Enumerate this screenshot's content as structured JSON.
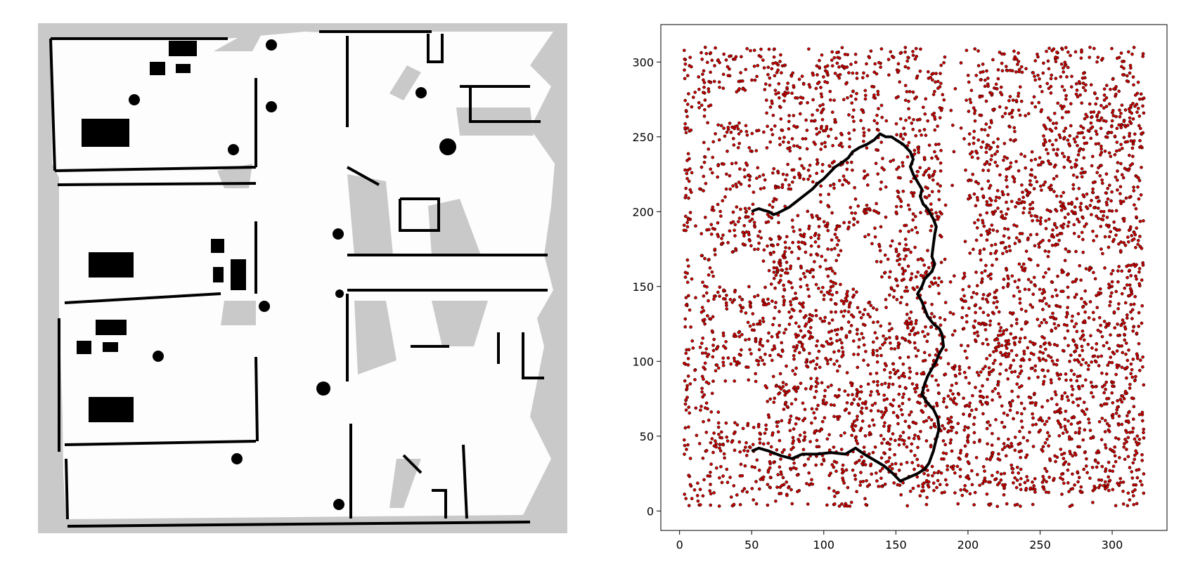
{
  "map": {
    "background_color": "#c9c9c9",
    "free_color": "#fdfdfd",
    "wall_color": "#000000",
    "obstacle_color": "#000000"
  },
  "chart_data": {
    "type": "scatter",
    "title": "",
    "xlabel": "",
    "ylabel": "",
    "xlim": [
      -13,
      338
    ],
    "ylim": [
      -13,
      325
    ],
    "x_ticks": [
      0,
      50,
      100,
      150,
      200,
      250,
      300
    ],
    "y_ticks": [
      0,
      50,
      100,
      150,
      200,
      250,
      300
    ],
    "x_tick_labels": [
      "0",
      "50",
      "100",
      "150",
      "200",
      "250",
      "300"
    ],
    "y_tick_labels": [
      "0",
      "50",
      "100",
      "150",
      "200",
      "250",
      "300"
    ],
    "grid": false,
    "legend": "none",
    "samples": {
      "marker_fill": "#cc0000",
      "marker_edge": "#000000",
      "x_range": [
        3,
        322
      ],
      "y_range": [
        3,
        310
      ],
      "description_free_regions": "sample points cover the free space of the map"
    },
    "path": {
      "color": "#000000",
      "start": [
        50,
        40
      ],
      "goal": [
        50,
        200
      ],
      "x": [
        50,
        55,
        62,
        70,
        78,
        85,
        95,
        105,
        115,
        122,
        128,
        135,
        142,
        148,
        153,
        158,
        165,
        170,
        173,
        176,
        178,
        180,
        179,
        176,
        172,
        168,
        170,
        172,
        175,
        178,
        180,
        183,
        182,
        180,
        176,
        172,
        170,
        168,
        165,
        168,
        170,
        173,
        175,
        177,
        175,
        176,
        177,
        178,
        176,
        172,
        169,
        167,
        168,
        165,
        162,
        160,
        162,
        160,
        155,
        150,
        147,
        143,
        139,
        135,
        130,
        125,
        120,
        117,
        113,
        108,
        104,
        100,
        96,
        92,
        88,
        84,
        80,
        76,
        72,
        68,
        65,
        62,
        58,
        55,
        52,
        50
      ],
      "y": [
        40,
        42,
        40,
        37,
        35,
        38,
        38,
        39,
        38,
        42,
        38,
        34,
        30,
        25,
        20,
        22,
        25,
        28,
        32,
        40,
        48,
        55,
        62,
        68,
        72,
        78,
        85,
        90,
        95,
        100,
        105,
        110,
        118,
        122,
        125,
        130,
        135,
        140,
        145,
        150,
        155,
        158,
        160,
        165,
        170,
        178,
        185,
        190,
        195,
        202,
        205,
        210,
        215,
        220,
        225,
        230,
        235,
        240,
        245,
        248,
        250,
        250,
        252,
        248,
        245,
        243,
        240,
        236,
        233,
        230,
        226,
        222,
        219,
        215,
        212,
        209,
        206,
        203,
        201,
        199,
        198,
        200,
        201,
        202,
        201,
        200
      ]
    }
  }
}
